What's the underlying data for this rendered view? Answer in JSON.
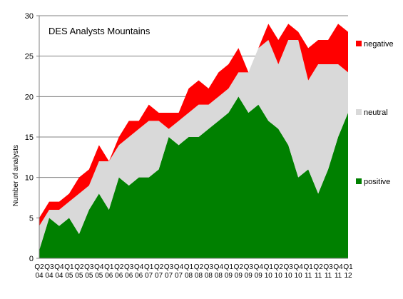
{
  "chart_data": {
    "type": "area",
    "stacked": true,
    "title": "DES Analysts Mountains",
    "xlabel": "",
    "ylabel": "Number of analysts",
    "ylim": [
      0,
      30
    ],
    "yticks": [
      0,
      5,
      10,
      15,
      20,
      25,
      30
    ],
    "grid": true,
    "legend_placement": "right",
    "categories": [
      "Q2 04",
      "Q3 04",
      "Q4 04",
      "Q1 05",
      "Q2 05",
      "Q3 05",
      "Q4 05",
      "Q1 06",
      "Q2 06",
      "Q3 06",
      "Q4 06",
      "Q1 07",
      "Q2 07",
      "Q3 07",
      "Q4 07",
      "Q1 08",
      "Q2 08",
      "Q3 08",
      "Q4 08",
      "Q1 09",
      "Q2 09",
      "Q3 09",
      "Q4 09",
      "Q1 10",
      "Q2 10",
      "Q3 10",
      "Q4 10",
      "Q1 11",
      "Q2 11",
      "Q3 11",
      "Q4 11",
      "Q1 12"
    ],
    "series": [
      {
        "name": "positive",
        "color": "#008000",
        "values": [
          1,
          5,
          4,
          5,
          3,
          6,
          8,
          6,
          10,
          9,
          10,
          10,
          11,
          15,
          14,
          15,
          15,
          16,
          17,
          18,
          20,
          18,
          19,
          17,
          16,
          14,
          10,
          11,
          8,
          11,
          15,
          18
        ]
      },
      {
        "name": "neutral",
        "color": "#d9d9d9",
        "values": [
          3,
          1,
          2,
          2,
          5,
          3,
          4,
          6,
          4,
          6,
          6,
          7,
          6,
          1,
          3,
          3,
          4,
          3,
          3,
          3,
          3,
          5,
          7,
          10,
          8,
          13,
          17,
          11,
          16,
          13,
          9,
          5
        ]
      },
      {
        "name": "negative",
        "color": "#ff0000",
        "values": [
          1,
          1,
          1,
          1,
          2,
          2,
          2,
          0,
          1,
          2,
          1,
          2,
          1,
          2,
          1,
          3,
          3,
          2,
          3,
          3,
          3,
          0,
          0,
          2,
          3,
          2,
          1,
          4,
          3,
          3,
          5,
          5
        ]
      }
    ]
  },
  "colors": {
    "positive": "#008000",
    "neutral": "#d9d9d9",
    "negative": "#ff0000",
    "gridline": "#808080"
  }
}
